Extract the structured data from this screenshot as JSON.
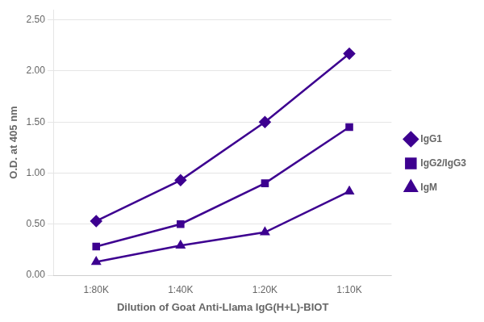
{
  "chart_data": {
    "type": "line",
    "xlabel": "Dilution of Goat Anti-Llama IgG(H+L)-BIOT",
    "ylabel": "O.D. at 405 nm",
    "categories": [
      "1:80K",
      "1:40K",
      "1:20K",
      "1:10K"
    ],
    "series": [
      {
        "name": "IgG1",
        "color": "#3d0090",
        "marker": "diamond",
        "values": [
          0.53,
          0.93,
          1.5,
          2.17
        ]
      },
      {
        "name": "IgG2/IgG3",
        "color": "#3d0090",
        "marker": "square",
        "values": [
          0.28,
          0.5,
          0.9,
          1.45
        ]
      },
      {
        "name": "IgM",
        "color": "#3d0090",
        "marker": "triangle",
        "values": [
          0.13,
          0.29,
          0.42,
          0.82
        ]
      }
    ],
    "ylim": [
      0.0,
      2.6
    ],
    "yticks": [
      {
        "value": 0.0,
        "label": "0.00"
      },
      {
        "value": 0.5,
        "label": "0.50"
      },
      {
        "value": 1.0,
        "label": "1.00"
      },
      {
        "value": 1.5,
        "label": "1.50"
      },
      {
        "value": 2.0,
        "label": "2.00"
      },
      {
        "value": 2.5,
        "label": "2.50"
      }
    ],
    "grid": "y",
    "legend": "right"
  }
}
